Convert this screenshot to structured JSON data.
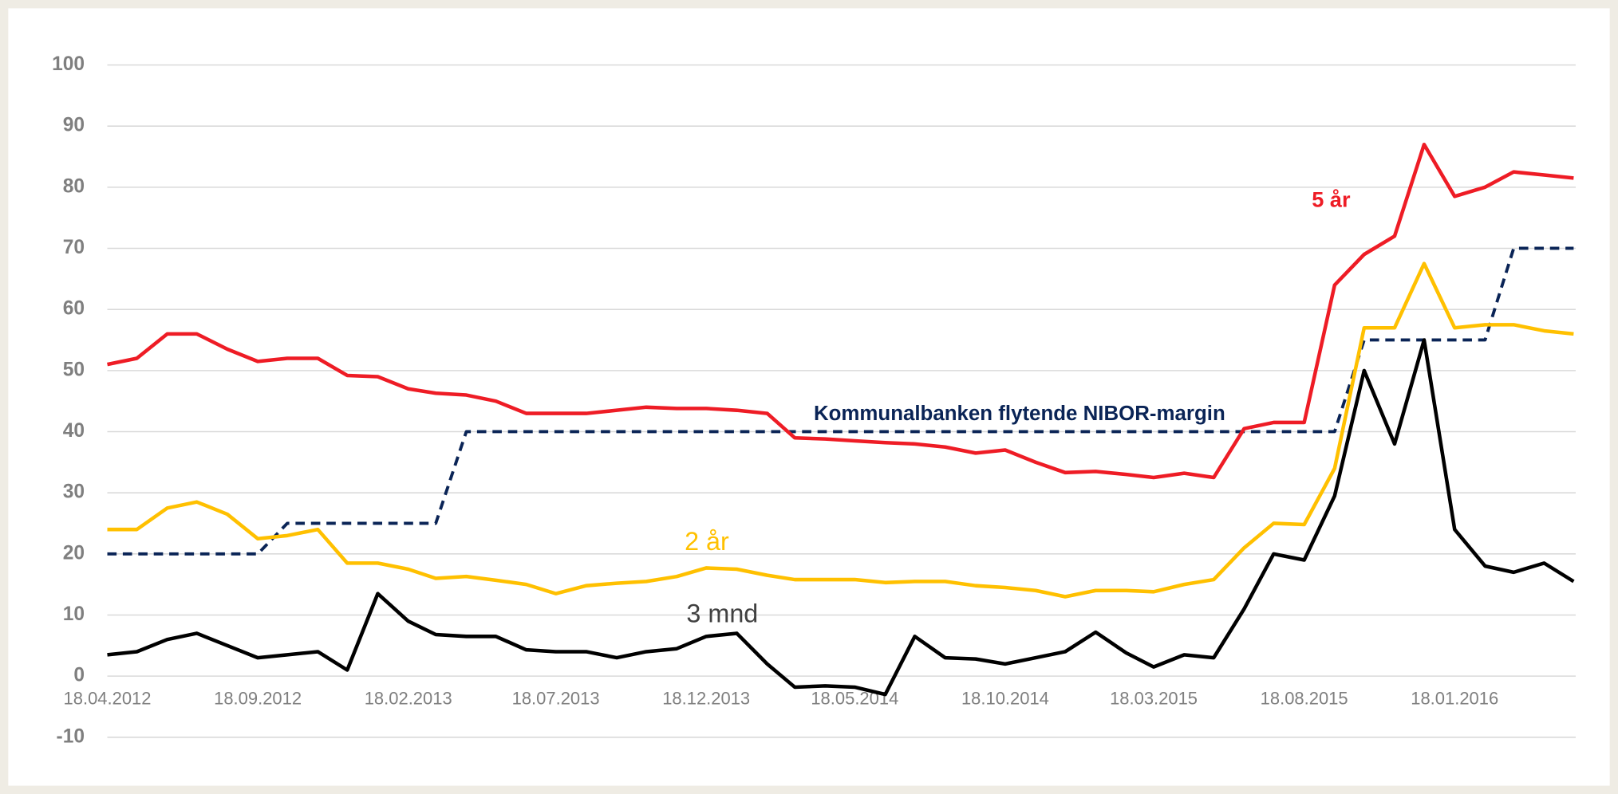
{
  "chart_data": {
    "type": "line",
    "x": [
      "18.04.2012",
      "18.05.2012",
      "18.06.2012",
      "18.07.2012",
      "18.08.2012",
      "18.09.2012",
      "18.10.2012",
      "18.11.2012",
      "18.12.2012",
      "18.01.2013",
      "18.02.2013",
      "18.03.2013",
      "18.04.2013",
      "18.05.2013",
      "18.06.2013",
      "18.07.2013",
      "18.08.2013",
      "18.09.2013",
      "18.10.2013",
      "18.11.2013",
      "18.12.2013",
      "18.01.2014",
      "18.02.2014",
      "18.03.2014",
      "18.04.2014",
      "18.05.2014",
      "18.06.2014",
      "18.07.2014",
      "18.08.2014",
      "18.09.2014",
      "18.10.2014",
      "18.11.2014",
      "18.12.2014",
      "18.01.2015",
      "18.02.2015",
      "18.03.2015",
      "18.04.2015",
      "18.05.2015",
      "18.06.2015",
      "18.07.2015",
      "18.08.2015",
      "18.09.2015",
      "18.10.2015",
      "18.11.2015",
      "18.12.2015",
      "18.01.2016",
      "18.02.2016",
      "18.03.2016",
      "18.04.2016",
      "18.05.2016"
    ],
    "series": [
      {
        "name": "5 år",
        "color": "#ee1c25",
        "values": [
          51,
          52,
          56,
          56,
          53.5,
          51.5,
          52,
          52,
          49.2,
          49,
          47,
          46.3,
          46,
          45,
          43,
          43,
          43,
          43.5,
          44,
          43.8,
          43.8,
          43.5,
          43,
          39,
          38.8,
          38.5,
          38.2,
          38,
          37.5,
          36.5,
          37,
          35,
          33.3,
          33.5,
          33,
          32.5,
          33.2,
          32.5,
          40.5,
          41.5,
          41.5,
          64,
          69,
          72,
          87,
          78.5,
          80,
          82.5,
          82,
          81.5
        ]
      },
      {
        "name": "2 år",
        "color": "#ffc000",
        "values": [
          24,
          24,
          27.5,
          28.5,
          26.5,
          22.5,
          23,
          24,
          18.5,
          18.5,
          17.5,
          16,
          16.3,
          15.7,
          15,
          13.5,
          14.8,
          15.2,
          15.5,
          16.3,
          17.7,
          17.5,
          16.5,
          15.8,
          15.8,
          15.8,
          15.3,
          15.5,
          15.5,
          14.8,
          14.5,
          14,
          13,
          14,
          14,
          13.8,
          15,
          15.8,
          21,
          25,
          24.8,
          34,
          57,
          57,
          67.5,
          57,
          57.5,
          57.5,
          56.5,
          56
        ]
      },
      {
        "name": "3 mnd",
        "color": "#000000",
        "values": [
          3.5,
          4,
          6,
          7,
          5,
          3,
          3.5,
          4,
          1,
          13.5,
          9,
          6.8,
          6.5,
          6.5,
          4.3,
          4,
          4,
          3,
          4,
          4.5,
          6.5,
          7,
          2,
          -1.8,
          -1.6,
          -1.8,
          -3,
          6.5,
          3,
          2.8,
          2,
          3,
          4,
          7.2,
          3.8,
          1.5,
          3.5,
          3,
          11,
          20,
          19,
          29.5,
          50,
          38,
          55,
          24,
          18,
          17,
          18.5,
          15.5
        ]
      },
      {
        "name": "Kommunalbanken flytende NIBOR-margin",
        "color": "#0a2456",
        "dashed": true,
        "values": [
          20,
          20,
          20,
          20,
          20,
          20,
          25,
          25,
          25,
          25,
          25,
          25,
          40,
          40,
          40,
          40,
          40,
          40,
          40,
          40,
          40,
          40,
          40,
          40,
          40,
          40,
          40,
          40,
          40,
          40,
          40,
          40,
          40,
          40,
          40,
          40,
          40,
          40,
          40,
          40,
          40,
          40,
          55,
          55,
          55,
          55,
          55,
          70,
          70,
          70
        ]
      }
    ],
    "xticks": [
      "18.04.2012",
      "18.09.2012",
      "18.02.2013",
      "18.07.2013",
      "18.12.2013",
      "18.05.2014",
      "18.10.2014",
      "18.03.2015",
      "18.08.2015",
      "18.01.2016"
    ],
    "ylim": [
      -10,
      100
    ],
    "yticks": [
      -10,
      0,
      10,
      20,
      30,
      40,
      50,
      60,
      70,
      80,
      90,
      100
    ],
    "grid": true
  }
}
